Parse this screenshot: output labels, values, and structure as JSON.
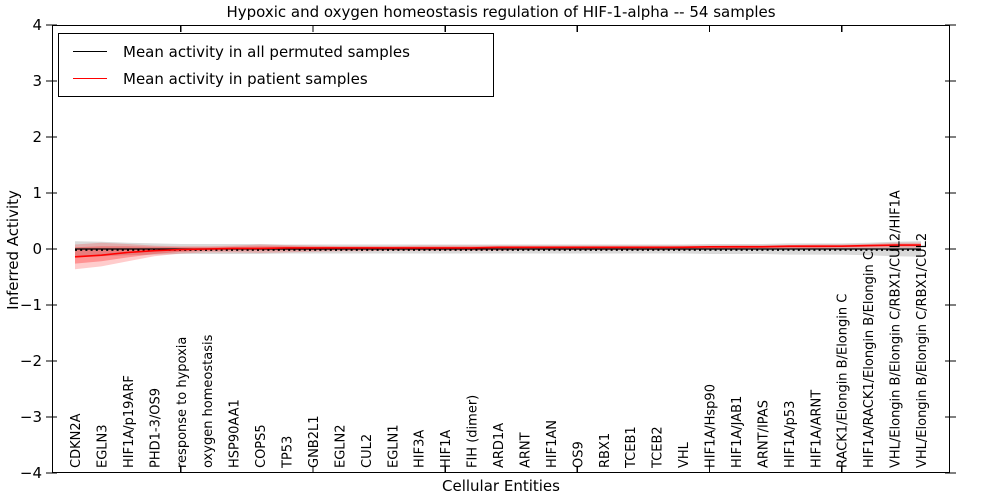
{
  "title": "Hypoxic and oxygen homeostasis regulation of HIF-1-alpha -- 54 samples",
  "axes": {
    "ylabel": "Inferred Activity",
    "xlabel": "Cellular Entities",
    "ylim": [
      -4,
      4
    ],
    "ytick_values": [
      4,
      3,
      2,
      1,
      0,
      -1,
      -2,
      -3,
      -4
    ],
    "ytick_labels": [
      "4",
      "3",
      "2",
      "1",
      "0",
      "−1",
      "−2",
      "−3",
      "−4"
    ],
    "x_major_tick_indices": [
      5,
      10,
      15,
      20,
      25,
      30
    ],
    "grid": false
  },
  "legend": {
    "position": "upper-left",
    "items": [
      {
        "label": "Mean activity in all permuted samples",
        "color": "#000000"
      },
      {
        "label": "Mean activity in patient samples",
        "color": "#ff0000"
      }
    ]
  },
  "chart_data": {
    "type": "line",
    "title": "Hypoxic and oxygen homeostasis regulation of HIF-1-alpha -- 54 samples",
    "xlabel": "Cellular Entities",
    "ylabel": "Inferred Activity",
    "ylim": [
      -4,
      4
    ],
    "legend_position": "upper left",
    "categories": [
      "CDKN2A",
      "EGLN3",
      "HIF1A/p19ARF",
      "PHD1-3/OS9",
      "response to hypoxia",
      "oxygen homeostasis",
      "HSP90AA1",
      "COPS5",
      "TP53",
      "GNB2L1",
      "EGLN2",
      "CUL2",
      "EGLN1",
      "HIF3A",
      "HIF1A",
      "FIH (dimer)",
      "ARD1A",
      "ARNT",
      "HIF1AN",
      "OS9",
      "RBX1",
      "TCEB1",
      "TCEB2",
      "VHL",
      "HIF1A/Hsp90",
      "HIF1A/JAB1",
      "ARNT/IPAS",
      "HIF1A/p53",
      "HIF1A/ARNT",
      "RACK1/Elongin B/Elongin C",
      "HIF1A/RACK1/Elongin B/Elongin C",
      "VHL/Elongin B/Elongin C/RBX1/CUL2/HIF1A",
      "VHL/Elongin B/Elongin C/RBX1/CUL2"
    ],
    "series": [
      {
        "name": "Mean activity in all permuted samples",
        "color": "#000000",
        "style": "solid",
        "values": [
          0,
          0,
          0,
          0,
          0,
          0,
          0,
          0,
          0,
          0,
          0,
          0,
          0,
          0,
          0,
          0,
          0,
          0,
          0,
          0,
          0,
          0,
          0,
          0,
          0,
          0,
          0,
          0,
          0,
          0,
          0,
          0,
          0
        ],
        "band_upper": [
          0.14,
          0.13,
          0.11,
          0.1,
          0.09,
          0.09,
          0.09,
          0.09,
          0.08,
          0.08,
          0.08,
          0.08,
          0.08,
          0.08,
          0.08,
          0.08,
          0.08,
          0.08,
          0.08,
          0.08,
          0.08,
          0.08,
          0.08,
          0.08,
          0.09,
          0.09,
          0.09,
          0.1,
          0.1,
          0.1,
          0.11,
          0.13,
          0.14
        ],
        "band_lower": [
          -0.14,
          -0.13,
          -0.11,
          -0.1,
          -0.09,
          -0.09,
          -0.09,
          -0.09,
          -0.08,
          -0.08,
          -0.08,
          -0.08,
          -0.08,
          -0.08,
          -0.08,
          -0.08,
          -0.08,
          -0.08,
          -0.08,
          -0.08,
          -0.08,
          -0.08,
          -0.08,
          -0.08,
          -0.09,
          -0.09,
          -0.09,
          -0.1,
          -0.1,
          -0.1,
          -0.11,
          -0.13,
          -0.14
        ],
        "band_color": "#999999"
      },
      {
        "name": "Mean activity in patient samples",
        "color": "#ff0000",
        "style": "solid",
        "values": [
          -0.14,
          -0.11,
          -0.06,
          -0.03,
          -0.01,
          0.0,
          0.01,
          0.01,
          0.02,
          0.02,
          0.02,
          0.02,
          0.02,
          0.02,
          0.02,
          0.02,
          0.03,
          0.03,
          0.03,
          0.03,
          0.03,
          0.03,
          0.03,
          0.03,
          0.04,
          0.04,
          0.04,
          0.05,
          0.05,
          0.05,
          0.06,
          0.07,
          0.07
        ],
        "band_upper": [
          0.08,
          0.11,
          0.09,
          0.06,
          0.05,
          0.05,
          0.06,
          0.08,
          0.07,
          0.06,
          0.05,
          0.05,
          0.05,
          0.06,
          0.06,
          0.06,
          0.06,
          0.06,
          0.06,
          0.06,
          0.06,
          0.06,
          0.06,
          0.06,
          0.06,
          0.07,
          0.07,
          0.07,
          0.08,
          0.08,
          0.09,
          0.11,
          0.11
        ],
        "band_lower": [
          -0.36,
          -0.31,
          -0.22,
          -0.13,
          -0.08,
          -0.06,
          -0.06,
          -0.07,
          -0.06,
          -0.05,
          -0.04,
          -0.04,
          -0.03,
          -0.03,
          -0.03,
          -0.03,
          -0.03,
          -0.02,
          -0.02,
          -0.02,
          -0.02,
          -0.02,
          -0.02,
          -0.02,
          -0.01,
          -0.01,
          -0.01,
          0.0,
          0.0,
          0.01,
          0.01,
          0.02,
          0.02
        ],
        "inner_band_upper": [
          0.03,
          0.05,
          0.05,
          0.04,
          0.03,
          0.03,
          0.04,
          0.05,
          0.05,
          0.04,
          0.04,
          0.04,
          0.04,
          0.04,
          0.04,
          0.04,
          0.04,
          0.04,
          0.04,
          0.04,
          0.04,
          0.04,
          0.04,
          0.05,
          0.05,
          0.05,
          0.05,
          0.06,
          0.06,
          0.06,
          0.07,
          0.08,
          0.08
        ],
        "inner_band_lower": [
          -0.26,
          -0.22,
          -0.15,
          -0.09,
          -0.05,
          -0.03,
          -0.02,
          -0.02,
          -0.02,
          -0.02,
          -0.01,
          -0.01,
          -0.01,
          -0.01,
          -0.01,
          -0.01,
          0.0,
          0.0,
          0.0,
          0.0,
          0.0,
          0.01,
          0.01,
          0.01,
          0.01,
          0.01,
          0.02,
          0.02,
          0.02,
          0.03,
          0.04,
          0.05,
          0.05
        ],
        "band_color": "#ff0000"
      }
    ],
    "reference_dashed_line": {
      "value": -0.02,
      "color": "#000000",
      "style": "dotted"
    }
  }
}
